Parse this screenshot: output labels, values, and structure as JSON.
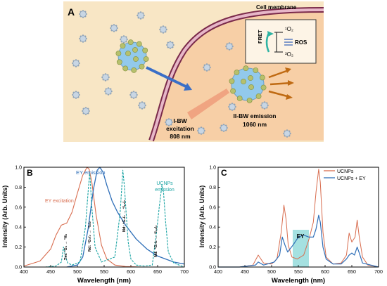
{
  "colors": {
    "panel_a_bg": "#f8e6c5",
    "cell_fill": "#f7cfa6",
    "membrane_outer": "#7a2a4a",
    "membrane_inner": "#e7b7c8",
    "nanoparticle": "#92c9ec",
    "nanoparticle_small": "#c8d6e4",
    "dot": "#b6c06d",
    "arrow_blue": "#3a6fc7",
    "arrow_orange": "#bf6a12",
    "ey_color": "#d86c4e",
    "ey_emission_color": "#2f6fb8",
    "ucnp_color": "#19a3a3",
    "eybox_fill": "#8fdada"
  },
  "panel_a": {
    "label": "A",
    "cell_membrane": "Cell membrane",
    "fret": "FRET",
    "o2_singlet": "¹O₂",
    "o2_triplet": "³O₂",
    "ros": "ROS",
    "excitation_1": "I-BW",
    "excitation_2": "excitation",
    "excitation_3": "808 nm",
    "emission_1": "II-BW emission",
    "emission_2": "1060 nm"
  },
  "panel_b": {
    "label": "B",
    "ylabel": "Intensity (Arb. Units)",
    "xlabel": "Wavelength (nm)",
    "legend_ey_excitation": "EY excitation",
    "legend_ey_emission": "EY emission",
    "legend_ucnps_1": "UCNPs",
    "legend_ucnps_2": "emission",
    "transition_1": "Tm: ¹G₄ → ³H₆",
    "transition_2": "Nd: ⁴G₇/₂ → ⁴I₉/₂",
    "transition_3": "Nd: ⁴G₇/₂ → ⁴I₁₁/₂",
    "transition_4": "Nd: ⁴G₇/₂ → ⁴I₁₃/₂"
  },
  "panel_c": {
    "label": "C",
    "ylabel": "Intensity (Arb. Units)",
    "xlabel": "Wavelength (nm)",
    "legend_1": "UCNPs",
    "legend_2": "UCNPs + EY",
    "ey_box": "EY"
  },
  "chart_data": [
    {
      "type": "line",
      "panel": "B",
      "title": "",
      "xlabel": "Wavelength (nm)",
      "ylabel": "Intensity (Arb. Units)",
      "xlim": [
        400,
        700
      ],
      "ylim": [
        0,
        1.0
      ],
      "xticks": [
        400,
        450,
        500,
        550,
        600,
        650,
        700
      ],
      "yticks": [
        0.0,
        0.2,
        0.4,
        0.6,
        0.8,
        1.0
      ],
      "series": [
        {
          "name": "EY excitation",
          "x": [
            400,
            430,
            450,
            460,
            470,
            480,
            490,
            500,
            510,
            518,
            522,
            527,
            535,
            545,
            555,
            570,
            590,
            620
          ],
          "y": [
            0.01,
            0.06,
            0.18,
            0.32,
            0.42,
            0.44,
            0.55,
            0.74,
            0.92,
            1.0,
            0.98,
            0.85,
            0.52,
            0.22,
            0.08,
            0.02,
            0.005,
            0.0
          ]
        },
        {
          "name": "EY emission",
          "x": [
            480,
            500,
            510,
            520,
            530,
            537,
            542,
            548,
            555,
            565,
            575,
            590,
            610,
            630,
            650,
            680,
            700
          ],
          "y": [
            0.0,
            0.02,
            0.1,
            0.38,
            0.78,
            0.97,
            1.0,
            0.95,
            0.82,
            0.66,
            0.55,
            0.42,
            0.28,
            0.18,
            0.11,
            0.05,
            0.03
          ]
        },
        {
          "name": "UCNPs emission",
          "x": [
            440,
            460,
            470,
            474,
            478,
            482,
            490,
            505,
            515,
            520,
            523,
            527,
            533,
            545,
            570,
            580,
            585,
            588,
            591,
            595,
            600,
            610,
            625,
            640,
            648,
            653,
            658,
            661,
            665,
            670,
            680,
            700
          ],
          "y": [
            0.0,
            0.01,
            0.05,
            0.2,
            0.1,
            0.04,
            0.02,
            0.05,
            0.4,
            0.75,
            0.95,
            0.6,
            0.2,
            0.05,
            0.1,
            0.55,
            0.97,
            0.8,
            0.55,
            0.25,
            0.08,
            0.02,
            0.01,
            0.02,
            0.35,
            0.6,
            0.82,
            0.75,
            0.45,
            0.15,
            0.04,
            0.0
          ]
        }
      ],
      "annotations": [
        "Tm: ¹G₄ → ³H₆",
        "Nd: ⁴G₇/₂ → ⁴I₉/₂",
        "Nd: ⁴G₇/₂ → ⁴I₁₁/₂",
        "Nd: ⁴G₇/₂ → ⁴I₁₃/₂"
      ]
    },
    {
      "type": "line",
      "panel": "C",
      "title": "",
      "xlabel": "Wavelength (nm)",
      "ylabel": "Intensity (Arb. Units)",
      "xlim": [
        400,
        700
      ],
      "ylim": [
        0,
        1.0
      ],
      "xticks": [
        400,
        450,
        500,
        550,
        600,
        650,
        700
      ],
      "yticks": [
        0.0,
        0.2,
        0.4,
        0.6,
        0.8,
        1.0
      ],
      "legend": "top-right",
      "series": [
        {
          "name": "UCNPs",
          "x": [
            400,
            440,
            465,
            475,
            485,
            500,
            510,
            518,
            523,
            527,
            531,
            538,
            548,
            560,
            570,
            578,
            583,
            588,
            591,
            596,
            602,
            615,
            630,
            640,
            645,
            650,
            656,
            660,
            664,
            670,
            680,
            700
          ],
          "y": [
            0.0,
            0.0,
            0.02,
            0.12,
            0.04,
            0.03,
            0.08,
            0.35,
            0.62,
            0.48,
            0.22,
            0.1,
            0.08,
            0.12,
            0.28,
            0.45,
            0.75,
            0.98,
            0.85,
            0.35,
            0.1,
            0.03,
            0.04,
            0.12,
            0.34,
            0.25,
            0.3,
            0.47,
            0.3,
            0.1,
            0.02,
            0.0
          ]
        },
        {
          "name": "UCNPs + EY",
          "x": [
            400,
            440,
            470,
            475,
            485,
            505,
            515,
            520,
            525,
            530,
            540,
            550,
            560,
            570,
            578,
            583,
            588,
            591,
            596,
            602,
            615,
            630,
            640,
            645,
            650,
            655,
            660,
            664,
            670,
            700
          ],
          "y": [
            0.0,
            0.0,
            0.02,
            0.05,
            0.02,
            0.05,
            0.12,
            0.3,
            0.22,
            0.15,
            0.22,
            0.3,
            0.32,
            0.3,
            0.3,
            0.38,
            0.52,
            0.45,
            0.2,
            0.08,
            0.03,
            0.03,
            0.08,
            0.12,
            0.14,
            0.12,
            0.2,
            0.14,
            0.04,
            0.0
          ]
        }
      ],
      "annotations": [
        "EY"
      ]
    }
  ]
}
